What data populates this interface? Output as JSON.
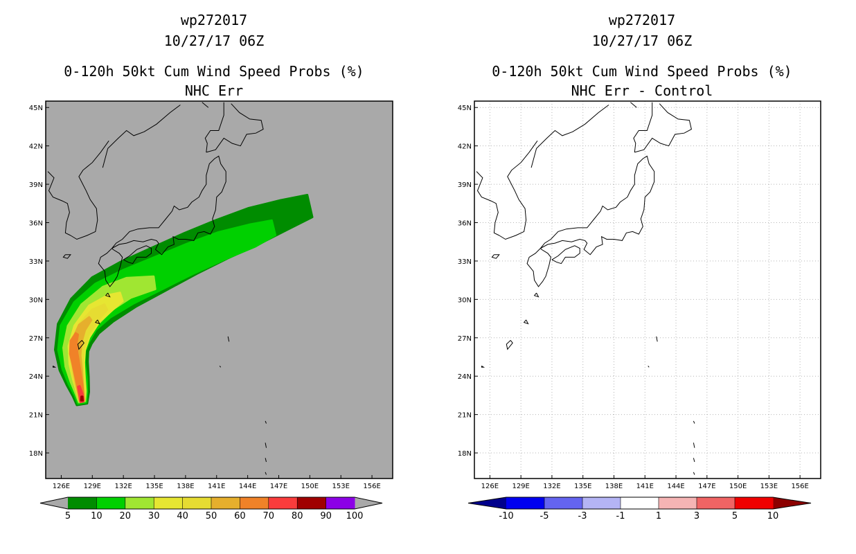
{
  "chart_data": [
    {
      "type": "heatmap",
      "id": "left",
      "title_lines": [
        "wp272017",
        "10/27/17 06Z",
        "0-120h 50kt Cum Wind Speed Probs (%)",
        "NHC Err"
      ],
      "background_color": "#a9a9a9",
      "xlim": [
        124.5,
        158
      ],
      "ylim": [
        16,
        45.5
      ],
      "xticks": [
        126,
        129,
        132,
        135,
        138,
        141,
        144,
        147,
        150,
        153,
        156
      ],
      "xtick_labels": [
        "126E",
        "129E",
        "132E",
        "135E",
        "138E",
        "141E",
        "144E",
        "147E",
        "150E",
        "153E",
        "156E"
      ],
      "yticks": [
        18,
        21,
        24,
        27,
        30,
        33,
        36,
        39,
        42,
        45
      ],
      "ytick_labels": [
        "18N",
        "21N",
        "24N",
        "27N",
        "30N",
        "33N",
        "36N",
        "39N",
        "42N",
        "45N"
      ],
      "grid": false,
      "colorbar": {
        "labels": [
          "5",
          "10",
          "20",
          "30",
          "40",
          "50",
          "60",
          "70",
          "80",
          "90",
          "100"
        ],
        "colors": [
          "#008c00",
          "#00d000",
          "#a0e632",
          "#e6e632",
          "#e6dc32",
          "#e6af2d",
          "#f08228",
          "#fa3c3c",
          "#a00000",
          "#8c00e6"
        ],
        "end_colors": [
          "#a9a9a9",
          "#a9a9a9"
        ]
      },
      "probability_swath": [
        {
          "level": "5-10",
          "color": "#008c00",
          "center": [
            [
              128.0,
              21.8
            ],
            [
              127.9,
              22.6
            ],
            [
              127.6,
              23.6
            ],
            [
              127.2,
              24.8
            ],
            [
              127.0,
              26.0
            ],
            [
              127.3,
              27.3
            ],
            [
              128.3,
              28.7
            ],
            [
              130.0,
              30.0
            ],
            [
              132.5,
              31.2
            ],
            [
              135.5,
              32.4
            ],
            [
              138.5,
              33.6
            ],
            [
              141.5,
              34.7
            ],
            [
              144.5,
              35.7
            ],
            [
              147.5,
              36.6
            ],
            [
              150.0,
              37.3
            ]
          ],
          "half_width": [
            0.5,
            0.8,
            1.1,
            1.4,
            1.6,
            1.8,
            1.9,
            2.0,
            1.9,
            1.8,
            1.7,
            1.6,
            1.5,
            1.2,
            0.9
          ]
        },
        {
          "level": "10-20",
          "color": "#00d000",
          "center": [
            [
              128.0,
              21.9
            ],
            [
              127.9,
              22.6
            ],
            [
              127.6,
              23.6
            ],
            [
              127.2,
              24.8
            ],
            [
              127.0,
              26.0
            ],
            [
              127.3,
              27.3
            ],
            [
              128.3,
              28.7
            ],
            [
              130.0,
              29.9
            ],
            [
              132.5,
              31.0
            ],
            [
              135.5,
              32.1
            ],
            [
              138.5,
              33.2
            ],
            [
              141.5,
              34.2
            ],
            [
              144.5,
              35.0
            ],
            [
              146.5,
              35.6
            ]
          ],
          "half_width": [
            0.4,
            0.6,
            0.9,
            1.1,
            1.3,
            1.5,
            1.5,
            1.5,
            1.4,
            1.3,
            1.2,
            1.1,
            0.9,
            0.6
          ]
        },
        {
          "level": "20-30",
          "color": "#a0e632",
          "center": [
            [
              128.0,
              22.0
            ],
            [
              127.9,
              22.7
            ],
            [
              127.6,
              23.7
            ],
            [
              127.3,
              24.9
            ],
            [
              127.2,
              26.1
            ],
            [
              127.6,
              27.4
            ],
            [
              128.7,
              28.8
            ],
            [
              130.5,
              30.1
            ],
            [
              132.5,
              30.9
            ],
            [
              135.0,
              31.3
            ]
          ],
          "half_width": [
            0.3,
            0.5,
            0.7,
            0.9,
            1.0,
            1.1,
            1.1,
            1.0,
            0.8,
            0.5
          ]
        },
        {
          "level": "30-40",
          "color": "#e6e632",
          "center": [
            [
              128.0,
              22.1
            ],
            [
              127.9,
              22.8
            ],
            [
              127.7,
              23.8
            ],
            [
              127.5,
              25.0
            ],
            [
              127.5,
              26.2
            ],
            [
              128.0,
              27.5
            ],
            [
              129.2,
              28.9
            ],
            [
              130.8,
              29.8
            ],
            [
              131.8,
              30.2
            ]
          ],
          "half_width": [
            0.25,
            0.4,
            0.55,
            0.7,
            0.8,
            0.85,
            0.8,
            0.6,
            0.35
          ]
        },
        {
          "level": "40-50",
          "color": "#e6dc32",
          "center": [
            [
              128.0,
              22.1
            ],
            [
              127.8,
              23.0
            ],
            [
              127.6,
              24.2
            ],
            [
              127.5,
              25.4
            ],
            [
              127.6,
              26.5
            ],
            [
              128.2,
              27.7
            ],
            [
              129.3,
              28.8
            ],
            [
              130.3,
              29.4
            ]
          ],
          "half_width": [
            0.22,
            0.35,
            0.5,
            0.6,
            0.65,
            0.6,
            0.5,
            0.25
          ]
        },
        {
          "level": "50-60",
          "color": "#e6af2d",
          "center": [
            [
              128.0,
              22.1
            ],
            [
              127.8,
              23.2
            ],
            [
              127.6,
              24.4
            ],
            [
              127.4,
              25.6
            ],
            [
              127.5,
              26.7
            ],
            [
              128.0,
              27.8
            ],
            [
              128.8,
              28.5
            ]
          ],
          "half_width": [
            0.2,
            0.3,
            0.4,
            0.45,
            0.45,
            0.35,
            0.15
          ]
        },
        {
          "level": "60-70",
          "color": "#f08228",
          "center": [
            [
              128.0,
              22.1
            ],
            [
              127.8,
              23.3
            ],
            [
              127.5,
              24.6
            ],
            [
              127.2,
              25.8
            ],
            [
              127.2,
              26.7
            ],
            [
              127.5,
              27.3
            ]
          ],
          "half_width": [
            0.18,
            0.25,
            0.3,
            0.35,
            0.3,
            0.12
          ]
        },
        {
          "level": "70-80",
          "color": "#fa3c3c",
          "center": [
            [
              128.0,
              22.0
            ],
            [
              127.9,
              22.6
            ],
            [
              127.7,
              23.2
            ]
          ],
          "half_width": [
            0.15,
            0.15,
            0.08
          ]
        },
        {
          "level": "80-90",
          "color": "#a00000",
          "center": [
            [
              128.0,
              22.1
            ],
            [
              128.0,
              22.4
            ]
          ],
          "half_width": [
            0.08,
            0.05
          ]
        }
      ]
    },
    {
      "type": "heatmap",
      "id": "right",
      "title_lines": [
        "wp272017",
        "10/27/17 06Z",
        "0-120h 50kt Cum Wind Speed Probs (%)",
        "NHC Err - Control"
      ],
      "background_color": "#ffffff",
      "xlim": [
        124.5,
        158
      ],
      "ylim": [
        16,
        45.5
      ],
      "xticks": [
        126,
        129,
        132,
        135,
        138,
        141,
        144,
        147,
        150,
        153,
        156
      ],
      "xtick_labels": [
        "126E",
        "129E",
        "132E",
        "135E",
        "138E",
        "141E",
        "144E",
        "147E",
        "150E",
        "153E",
        "156E"
      ],
      "yticks": [
        18,
        21,
        24,
        27,
        30,
        33,
        36,
        39,
        42,
        45
      ],
      "ytick_labels": [
        "18N",
        "21N",
        "24N",
        "27N",
        "30N",
        "33N",
        "36N",
        "39N",
        "42N",
        "45N"
      ],
      "grid": true,
      "colorbar": {
        "labels": [
          "-10",
          "-5",
          "-3",
          "-1",
          "1",
          "3",
          "5",
          "10"
        ],
        "colors": [
          "#0000f0",
          "#6464f0",
          "#b4b4f5",
          "#ffffff",
          "#f5b4b4",
          "#f06464",
          "#f00000"
        ],
        "end_colors": [
          "#00008c",
          "#8c0000"
        ]
      },
      "probability_swath": []
    }
  ]
}
